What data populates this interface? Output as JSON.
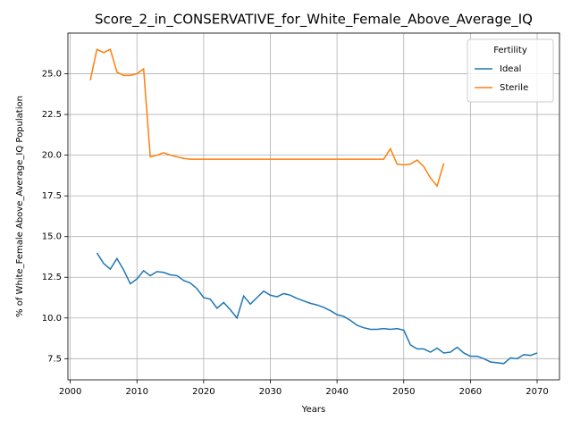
{
  "chart_data": {
    "type": "line",
    "title": "Score_2_in_CONSERVATIVE_for_White_Female_Above_Average_IQ",
    "x_label": "Years",
    "y_label": "% of White_Female Above_Average_IQ Population",
    "x": [
      2003,
      2004,
      2005,
      2006,
      2007,
      2008,
      2009,
      2010,
      2011,
      2012,
      2013,
      2014,
      2015,
      2016,
      2017,
      2018,
      2019,
      2020,
      2021,
      2022,
      2023,
      2024,
      2025,
      2026,
      2027,
      2028,
      2029,
      2030,
      2031,
      2032,
      2033,
      2034,
      2035,
      2036,
      2037,
      2038,
      2039,
      2040,
      2041,
      2042,
      2043,
      2044,
      2045,
      2046,
      2047,
      2048,
      2049,
      2050,
      2051,
      2052,
      2053,
      2054,
      2055,
      2056,
      2057,
      2058,
      2059,
      2060,
      2061,
      2062,
      2063,
      2064,
      2065,
      2066,
      2067,
      2068,
      2069,
      2070
    ],
    "series": [
      {
        "name": "Ideal",
        "color": "#1f77b4",
        "values": [
          null,
          14.0,
          13.35,
          13.0,
          13.65,
          12.95,
          12.1,
          12.4,
          12.9,
          12.6,
          12.85,
          12.8,
          12.65,
          12.6,
          12.3,
          12.15,
          11.8,
          11.25,
          11.15,
          10.6,
          10.95,
          10.5,
          10.0,
          11.35,
          10.85,
          11.25,
          11.65,
          11.4,
          11.3,
          11.5,
          11.4,
          11.2,
          11.05,
          10.9,
          10.8,
          10.65,
          10.45,
          10.2,
          10.1,
          9.85,
          9.55,
          9.4,
          9.3,
          9.3,
          9.35,
          9.3,
          9.35,
          9.25,
          8.35,
          8.1,
          8.1,
          7.9,
          8.15,
          7.85,
          7.9,
          8.2,
          7.85,
          7.65,
          7.65,
          7.5,
          7.3,
          7.25,
          7.2,
          7.55,
          7.5,
          7.75,
          7.7,
          7.85
        ]
      },
      {
        "name": "Sterile",
        "color": "#ff7f0e",
        "values": [
          24.6,
          26.5,
          26.3,
          26.5,
          25.1,
          24.9,
          24.9,
          25.0,
          25.3,
          19.9,
          20.0,
          20.15,
          20.0,
          19.9,
          19.8,
          19.75,
          19.75,
          19.75,
          19.75,
          19.75,
          19.75,
          19.75,
          19.75,
          19.75,
          19.75,
          19.75,
          19.75,
          19.75,
          19.75,
          19.75,
          19.75,
          19.75,
          19.75,
          19.75,
          19.75,
          19.75,
          19.75,
          19.75,
          19.75,
          19.75,
          19.75,
          19.75,
          19.75,
          19.75,
          19.75,
          20.4,
          19.45,
          19.4,
          19.45,
          19.7,
          19.3,
          18.6,
          18.1,
          19.5,
          null,
          null,
          null,
          null,
          null,
          null,
          null,
          null,
          null,
          null,
          null,
          null,
          null,
          null
        ]
      }
    ],
    "xlim": [
      1999.65,
      2073.35
    ],
    "ylim": [
      6.2,
      27.5
    ],
    "xticks": [
      2000,
      2010,
      2020,
      2030,
      2040,
      2050,
      2060,
      2070
    ],
    "yticks": [
      {
        "value": 7.5,
        "label": "7.5"
      },
      {
        "value": 10,
        "label": "10.0"
      },
      12.5,
      {
        "value": 15,
        "label": "15.0"
      },
      17.5,
      {
        "value": 20,
        "label": "20.0"
      },
      22.5,
      {
        "value": 25,
        "label": "25.0"
      }
    ],
    "grid": true,
    "legend_title": "Fertility",
    "legend_position": "upper right"
  }
}
